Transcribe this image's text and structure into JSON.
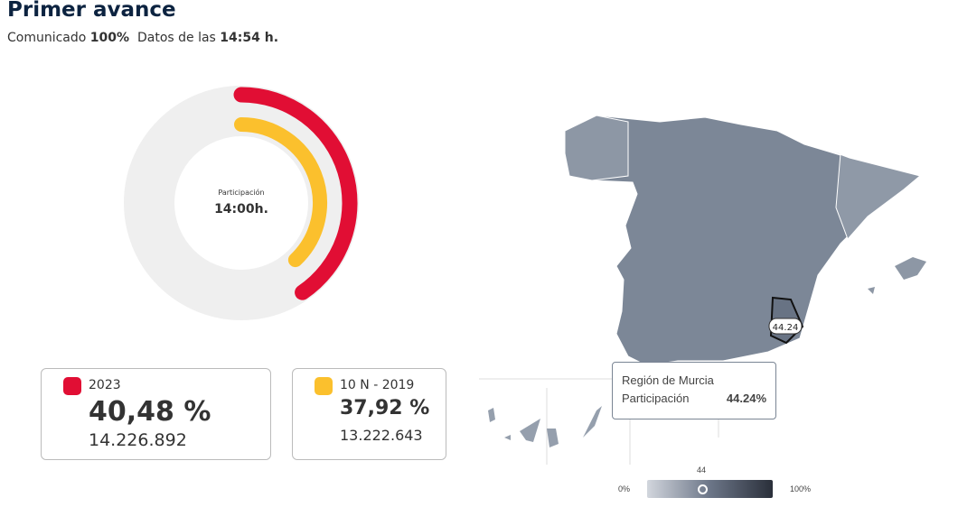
{
  "header": {
    "title": "Primer avance",
    "sub_label": "Comunicado",
    "sub_pct": "100%",
    "sub_time_label": "Datos de las",
    "sub_time": "14:54 h."
  },
  "donut": {
    "center_label": "Participación",
    "center_time": "14:00h.",
    "current_pct": 40.48,
    "previous_pct": 37.92,
    "colors": {
      "current": "#e10e34",
      "previous": "#fbc02d",
      "track": "#efefef"
    }
  },
  "cards": [
    {
      "year": "2023",
      "pct": "40,48 %",
      "votes": "14.226.892",
      "color": "#e10e34"
    },
    {
      "year": "10 N - 2019",
      "pct": "37,92 %",
      "votes": "13.222.643",
      "color": "#fbc02d"
    }
  ],
  "map": {
    "marker_value": "44.24",
    "tooltip": {
      "region": "Región de Murcia",
      "label": "Participación",
      "value": "44.24%"
    }
  },
  "legend": {
    "min": "0%",
    "max": "100%",
    "value_label": "44",
    "value": 44
  }
}
